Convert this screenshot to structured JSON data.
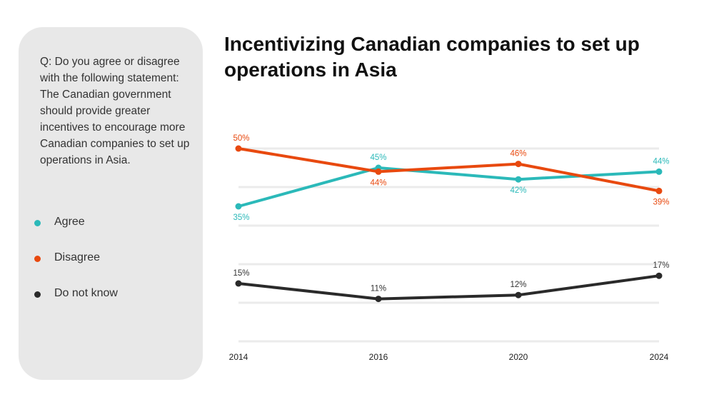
{
  "question": "Q: Do you agree or disagree with the following statement: The Canadian government should provide greater incentives to encourage more Canadian companies to set up operations in Asia.",
  "chart_data": {
    "type": "line",
    "title": "Incentivizing Canadian companies to set up operations in Asia",
    "xlabel": "",
    "ylabel": "",
    "categories": [
      "2014",
      "2016",
      "2020",
      "2024"
    ],
    "ylim": [
      0,
      55
    ],
    "grid": true,
    "y_axis_labels": false,
    "legend_position": "left",
    "series": [
      {
        "name": "Agree",
        "color": "#2bb9b9",
        "values": [
          35,
          45,
          42,
          44
        ],
        "labels": [
          "35%",
          "45%",
          "42%",
          "44%"
        ]
      },
      {
        "name": "Disagree",
        "color": "#e8490f",
        "values": [
          50,
          44,
          46,
          39
        ],
        "labels": [
          "50%",
          "44%",
          "46%",
          "39%"
        ]
      },
      {
        "name": "Do not know",
        "color": "#2a2a2a",
        "values": [
          15,
          11,
          12,
          17
        ],
        "labels": [
          "15%",
          "11%",
          "12%",
          "17%"
        ]
      }
    ]
  }
}
